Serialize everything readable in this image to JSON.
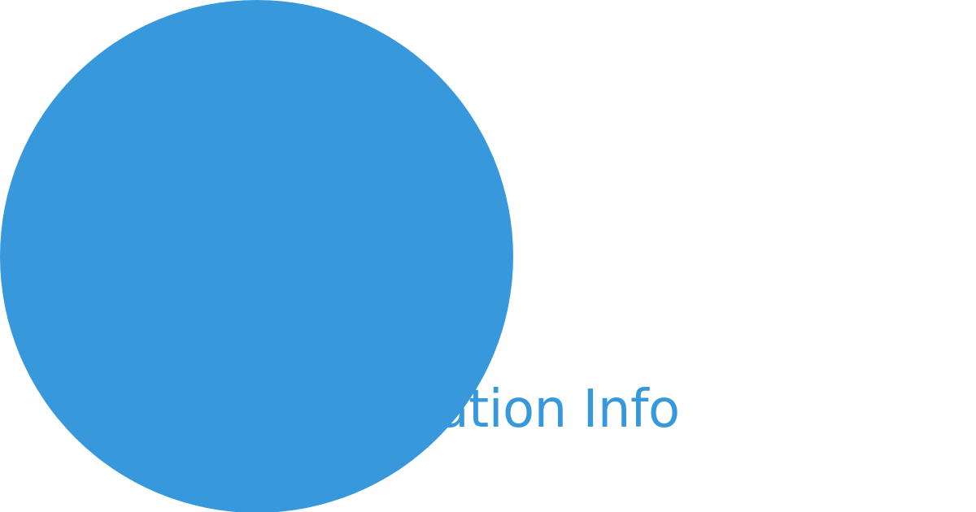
{
  "banner": {
    "text": "Location Info",
    "accent_color": "#3798dc",
    "background_color": "#ffffff"
  }
}
